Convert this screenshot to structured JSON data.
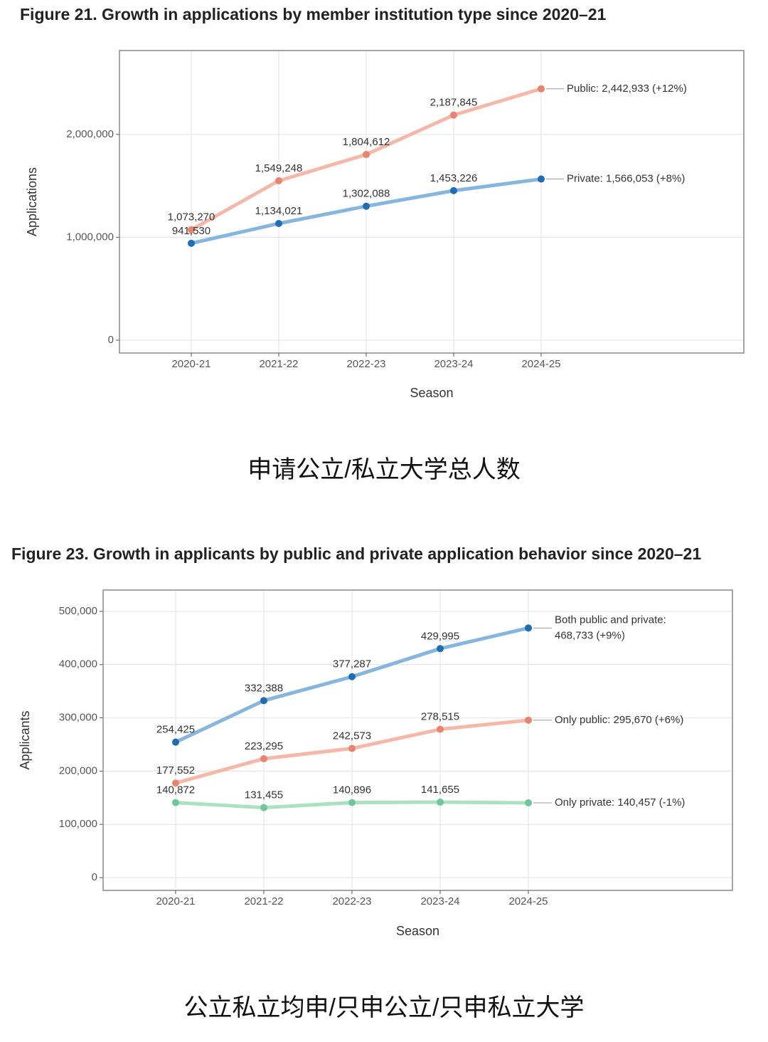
{
  "chart_data": [
    {
      "type": "line",
      "title": "Figure 21. Growth in applications by member institution type since 2020–21",
      "caption": "申请公立/私立大学总人数",
      "x_label": "Season",
      "y_label": "Applications",
      "categories": [
        "2020-21",
        "2021-22",
        "2022-23",
        "2023-24",
        "2024-25"
      ],
      "series": [
        {
          "name": [
            "Public: 2,442,933 (+12%)"
          ],
          "color": "#f5b8a8",
          "marker_color": "#e9846c",
          "values": [
            1073270,
            1549248,
            1804612,
            2187845,
            2442933
          ],
          "value_labels": [
            "1,073,270",
            "1,549,248",
            "1,804,612",
            "2,187,845",
            null
          ]
        },
        {
          "name": [
            "Private: 1,566,053 (+8%)"
          ],
          "color": "#86b5de",
          "marker_color": "#1f6db3",
          "values": [
            941530,
            1134021,
            1302088,
            1453226,
            1566053
          ],
          "value_labels": [
            "941,530",
            "1,134,021",
            "1,302,088",
            "1,453,226",
            null
          ]
        }
      ],
      "ylim": [
        -125000,
        2815000
      ],
      "yticks": [
        {
          "value": 0,
          "label": "0"
        },
        {
          "value": 1000000,
          "label": "1,000,000"
        },
        {
          "value": 2000000,
          "label": "2,000,000"
        }
      ],
      "grid": true
    },
    {
      "type": "line",
      "title": "Figure 23. Growth in applicants by public and private application behavior since 2020–21",
      "caption": "公立私立均申/只申公立/只申私立大学",
      "x_label": "Season",
      "y_label": "Applicants",
      "categories": [
        "2020-21",
        "2021-22",
        "2022-23",
        "2023-24",
        "2024-25"
      ],
      "series": [
        {
          "name": [
            "Both public and private:",
            "468,733 (+9%)"
          ],
          "color": "#86b5de",
          "marker_color": "#1f6db3",
          "values": [
            254425,
            332388,
            377287,
            429995,
            468733
          ],
          "value_labels": [
            "254,425",
            "332,388",
            "377,287",
            "429,995",
            null
          ]
        },
        {
          "name": [
            "Only public: 295,670 (+6%)"
          ],
          "color": "#f5b8a8",
          "marker_color": "#e9846c",
          "values": [
            177552,
            223295,
            242573,
            278515,
            295670
          ],
          "value_labels": [
            "177,552",
            "223,295",
            "242,573",
            "278,515",
            null
          ]
        },
        {
          "name": [
            "Only private: 140,457 (-1%)"
          ],
          "color": "#ace0c3",
          "marker_color": "#6cc79a",
          "values": [
            140872,
            131455,
            140896,
            141655,
            140457
          ],
          "value_labels": [
            "140,872",
            "131,455",
            "140,896",
            "141,655",
            null
          ]
        }
      ],
      "ylim": [
        -24000,
        540000
      ],
      "yticks": [
        {
          "value": 0,
          "label": "0"
        },
        {
          "value": 100000,
          "label": "100,000"
        },
        {
          "value": 200000,
          "label": "200,000"
        },
        {
          "value": 300000,
          "label": "300,000"
        },
        {
          "value": 400000,
          "label": "400,000"
        },
        {
          "value": 500000,
          "label": "500,000"
        }
      ],
      "grid": true
    }
  ]
}
